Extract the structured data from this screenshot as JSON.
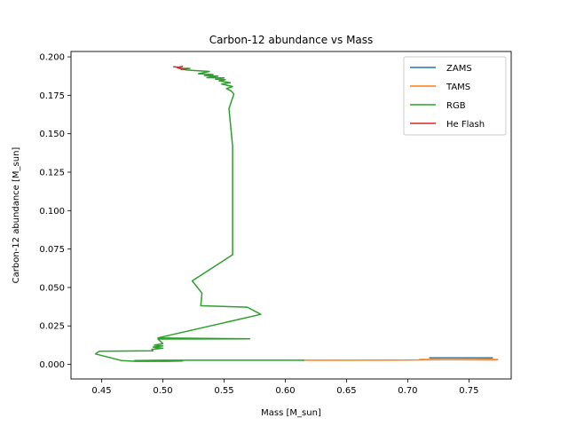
{
  "chart_data": {
    "type": "line",
    "title": "Carbon-12 abundance vs Mass",
    "xlabel": "Mass [M_sun]",
    "ylabel": "Carbon-12 abundance [M_sun]",
    "xlim": [
      0.425,
      0.7845
    ],
    "ylim": [
      -0.0095,
      0.2035
    ],
    "xticks": [
      0.45,
      0.5,
      0.55,
      0.6,
      0.65,
      0.7,
      0.75
    ],
    "xtick_labels": [
      "0.45",
      "0.50",
      "0.55",
      "0.60",
      "0.65",
      "0.70",
      "0.75"
    ],
    "yticks": [
      0.0,
      0.025,
      0.05,
      0.075,
      0.1,
      0.125,
      0.15,
      0.175,
      0.2
    ],
    "ytick_labels": [
      "0.000",
      "0.025",
      "0.050",
      "0.075",
      "0.100",
      "0.125",
      "0.150",
      "0.175",
      "0.200"
    ],
    "legend_position": "top-right",
    "series": [
      {
        "name": "ZAMS",
        "color": "#1f77b4",
        "x": [
          0.718,
          0.769
        ],
        "y": [
          0.0042,
          0.0042
        ]
      },
      {
        "name": "TAMS",
        "color": "#ff7f0e",
        "x": [
          0.615,
          0.69,
          0.73,
          0.771,
          0.7735,
          0.7715,
          0.73,
          0.71
        ],
        "y": [
          0.0027,
          0.0028,
          0.003,
          0.0032,
          0.003,
          0.0029,
          0.0031,
          0.0032
        ]
      },
      {
        "name": "RGB",
        "color": "#2ca02c",
        "x": [
          0.615,
          0.5,
          0.477,
          0.498,
          0.516,
          0.503,
          0.478,
          0.466,
          0.445,
          0.448,
          0.472,
          0.492,
          0.491,
          0.5,
          0.492,
          0.5,
          0.493,
          0.5,
          0.496,
          0.571,
          0.496,
          0.58,
          0.569,
          0.531,
          0.532,
          0.524,
          0.557,
          0.557,
          0.554,
          0.558,
          0.556,
          0.552,
          0.557,
          0.548,
          0.555,
          0.546,
          0.551,
          0.543,
          0.55,
          0.536,
          0.545,
          0.534,
          0.541,
          0.529,
          0.538,
          0.522,
          0.519,
          0.514,
          0.522
        ],
        "y": [
          0.0027,
          0.0027,
          0.0025,
          0.0023,
          0.0022,
          0.002,
          0.002,
          0.0025,
          0.0068,
          0.0085,
          0.0087,
          0.0088,
          0.0098,
          0.0105,
          0.0112,
          0.012,
          0.0125,
          0.0135,
          0.0165,
          0.0166,
          0.0172,
          0.0325,
          0.0372,
          0.0381,
          0.0463,
          0.0543,
          0.0713,
          0.1418,
          0.1663,
          0.1758,
          0.1777,
          0.1794,
          0.1807,
          0.1823,
          0.1832,
          0.1844,
          0.1851,
          0.1855,
          0.1863,
          0.1865,
          0.1875,
          0.1878,
          0.1885,
          0.189,
          0.1905,
          0.1913,
          0.1915,
          0.1925,
          0.1925
        ]
      },
      {
        "name": "He Flash",
        "color": "#d62728",
        "x": [
          0.509,
          0.513,
          0.516,
          0.512,
          0.517,
          0.515,
          0.52
        ],
        "y": [
          0.1935,
          0.1933,
          0.1938,
          0.1928,
          0.1922,
          0.1918,
          0.1925
        ]
      }
    ]
  }
}
